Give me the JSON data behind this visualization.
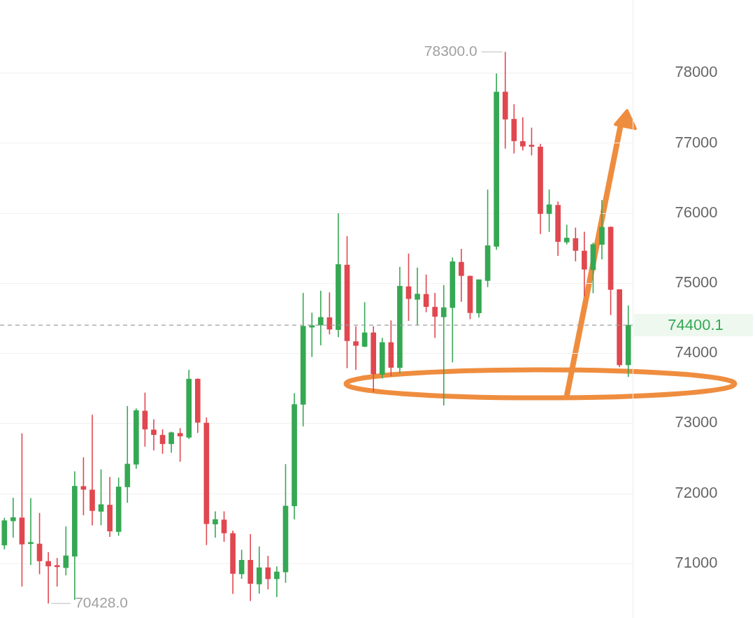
{
  "chart_data": {
    "type": "candlestick",
    "categories": [
      null,
      null,
      null,
      null,
      null,
      null,
      null,
      null,
      null,
      null,
      null,
      null,
      null,
      null,
      null,
      null,
      null,
      null,
      null,
      null,
      null,
      null,
      null,
      null,
      null,
      null,
      null,
      null,
      null,
      null,
      null,
      null,
      null,
      null,
      null,
      null,
      null,
      null,
      null,
      null,
      null,
      null,
      null,
      null,
      null,
      null,
      null,
      null,
      null,
      null,
      null,
      null,
      null,
      null,
      null,
      null,
      null,
      null,
      null,
      null,
      null,
      null,
      null,
      null,
      null,
      null,
      null,
      null,
      null,
      null,
      null,
      null
    ],
    "ohlc": [
      [
        71260,
        71650,
        71200,
        71610
      ],
      [
        71606,
        71935,
        71367,
        71653
      ],
      [
        71650,
        72855,
        70669,
        71274
      ],
      [
        71280,
        71932,
        70978,
        71290
      ],
      [
        71277,
        71719,
        70845,
        71034
      ],
      [
        71028,
        71160,
        70428,
        70961
      ],
      [
        70955,
        71077,
        70669,
        70950
      ],
      [
        70938,
        71526,
        70829,
        71108
      ],
      [
        71101,
        72314,
        70480,
        72101
      ],
      [
        72098,
        72513,
        71686,
        72055
      ],
      [
        72048,
        73121,
        71543,
        71752
      ],
      [
        71742,
        72341,
        71543,
        71839
      ],
      [
        71832,
        72234,
        71377,
        71460
      ],
      [
        71453,
        72224,
        71393,
        72091
      ],
      [
        72091,
        73244,
        71865,
        72417
      ],
      [
        72414,
        73211,
        72351,
        73181
      ],
      [
        73174,
        73437,
        72666,
        72915
      ],
      [
        72905,
        73055,
        72613,
        72836
      ],
      [
        72829,
        72912,
        72563,
        72706
      ],
      [
        72706,
        72879,
        72580,
        72866
      ],
      [
        72856,
        72929,
        72450,
        72816
      ],
      [
        72799,
        73763,
        72773,
        73630
      ],
      [
        73630,
        73640,
        72862,
        73012
      ],
      [
        73002,
        73082,
        71260,
        71566
      ],
      [
        71560,
        71742,
        71367,
        71626
      ],
      [
        71620,
        71742,
        71307,
        71433
      ],
      [
        71427,
        71467,
        70563,
        70855
      ],
      [
        70849,
        71194,
        70779,
        71045
      ],
      [
        71045,
        71417,
        70463,
        70712
      ],
      [
        70705,
        71241,
        70569,
        70938
      ],
      [
        70938,
        71108,
        70629,
        70779
      ],
      [
        70779,
        70955,
        70519,
        70878
      ],
      [
        70878,
        72417,
        70722,
        71819
      ],
      [
        71819,
        73427,
        71626,
        73268
      ],
      [
        73268,
        74860,
        72955,
        74384
      ],
      [
        74370,
        74577,
        73946,
        74394
      ],
      [
        74401,
        74890,
        74112,
        74511
      ],
      [
        74507,
        74866,
        74268,
        74341
      ],
      [
        74335,
        75996,
        74228,
        75265
      ],
      [
        75258,
        75670,
        73786,
        74178
      ],
      [
        74165,
        74384,
        73763,
        74109
      ],
      [
        74096,
        74727,
        74085,
        74291
      ],
      [
        74291,
        74384,
        73447,
        73703
      ],
      [
        73697,
        74218,
        73637,
        74152
      ],
      [
        74152,
        74467,
        73670,
        73796
      ],
      [
        73793,
        75232,
        73713,
        74956
      ],
      [
        74949,
        75421,
        74461,
        74777
      ],
      [
        74767,
        75222,
        74401,
        74843
      ],
      [
        74840,
        75122,
        74584,
        74664
      ],
      [
        74657,
        74860,
        74218,
        74524
      ],
      [
        74517,
        74973,
        73254,
        74650
      ],
      [
        74650,
        75365,
        73869,
        75305
      ],
      [
        75298,
        75488,
        74733,
        75106
      ],
      [
        75099,
        75106,
        74484,
        74577
      ],
      [
        74574,
        75049,
        74507,
        75049
      ],
      [
        75035,
        76335,
        74942,
        75534
      ],
      [
        75523,
        77992,
        75475,
        77727
      ],
      [
        77727,
        78300,
        76919,
        77339
      ],
      [
        77339,
        77552,
        76850,
        77029
      ],
      [
        77022,
        77366,
        76892,
        76953
      ],
      [
        76960,
        77218,
        76823,
        76950
      ],
      [
        76943,
        76988,
        75699,
        75991
      ],
      [
        75991,
        76335,
        75730,
        76118
      ],
      [
        76111,
        76163,
        75389,
        75592
      ],
      [
        75585,
        75833,
        75551,
        75643
      ],
      [
        75637,
        75791,
        75310,
        75465
      ],
      [
        75458,
        75733,
        74812,
        75197
      ],
      [
        75190,
        75578,
        74856,
        75551
      ],
      [
        75551,
        76187,
        75338,
        75798
      ],
      [
        75798,
        75808,
        74543,
        74908
      ],
      [
        74908,
        74908,
        73800,
        73832
      ],
      [
        73832,
        74681,
        73660,
        74400.1
      ]
    ],
    "colors": [
      "#35a853",
      "#35a853",
      "#e0474f",
      "#35a853",
      "#e0474f",
      "#e0474f",
      "#e0474f",
      "#35a853",
      "#35a853",
      "#e0474f",
      "#e0474f",
      "#35a853",
      "#e0474f",
      "#35a853",
      "#35a853",
      "#35a853",
      "#e0474f",
      "#e0474f",
      "#e0474f",
      "#35a853",
      "#e0474f",
      "#35a853",
      "#e0474f",
      "#e0474f",
      "#35a853",
      "#e0474f",
      "#e0474f",
      "#35a853",
      "#e0474f",
      "#35a853",
      "#e0474f",
      "#35a853",
      "#35a853",
      "#35a853",
      "#35a853",
      "#35a853",
      "#35a853",
      "#e0474f",
      "#35a853",
      "#e0474f",
      "#e0474f",
      "#35a853",
      "#e0474f",
      "#35a853",
      "#e0474f",
      "#35a853",
      "#e0474f",
      "#35a853",
      "#e0474f",
      "#e0474f",
      "#35a853",
      "#35a853",
      "#e0474f",
      "#e0474f",
      "#35a853",
      "#35a853",
      "#35a853",
      "#e0474f",
      "#e0474f",
      "#e0474f",
      "#e0474f",
      "#e0474f",
      "#35a853",
      "#e0474f",
      "#35a853",
      "#e0474f",
      "#e0474f",
      "#35a853",
      "#35a853",
      "#e0474f",
      "#e0474f",
      "#35a853"
    ],
    "ylim": [
      70220,
      79040
    ],
    "yticks": [
      71000,
      72000,
      73000,
      74000,
      75000,
      76000,
      77000,
      78000
    ],
    "grid": "y",
    "legend": false,
    "tick_labels": "y",
    "ref_lines": [
      {
        "axis": "y",
        "value": 74400.1,
        "label": "74400.1",
        "color": "#9e9e9e",
        "line_style": "dashed"
      }
    ],
    "annotations": [
      "78300.0",
      "70428.0"
    ]
  }
}
